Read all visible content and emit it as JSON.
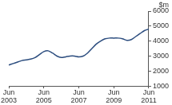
{
  "chart_data": {
    "type": "line",
    "y_label": "$m",
    "categories": [
      "Jun 2003",
      null,
      null,
      null,
      null,
      null,
      null,
      null,
      "Jun 2005",
      null,
      null,
      null,
      null,
      null,
      null,
      null,
      "Jun 2007",
      null,
      null,
      null,
      null,
      null,
      null,
      null,
      "Jun 2009",
      null,
      null,
      null,
      null,
      null,
      null,
      null,
      "Jun 2011"
    ],
    "values": [
      2400,
      2500,
      2600,
      2700,
      2750,
      2800,
      2900,
      3100,
      3300,
      3350,
      3200,
      3000,
      2900,
      2950,
      3000,
      3000,
      2950,
      3000,
      3200,
      3500,
      3800,
      4000,
      4150,
      4200,
      4200,
      4200,
      4150,
      4050,
      4100,
      4300,
      4500,
      4700,
      4800
    ],
    "color": "#2b4c7e",
    "ylim": [
      1000,
      6000
    ],
    "yticks": [
      1000,
      2000,
      3000,
      4000,
      5000,
      6000
    ],
    "grid": false
  }
}
